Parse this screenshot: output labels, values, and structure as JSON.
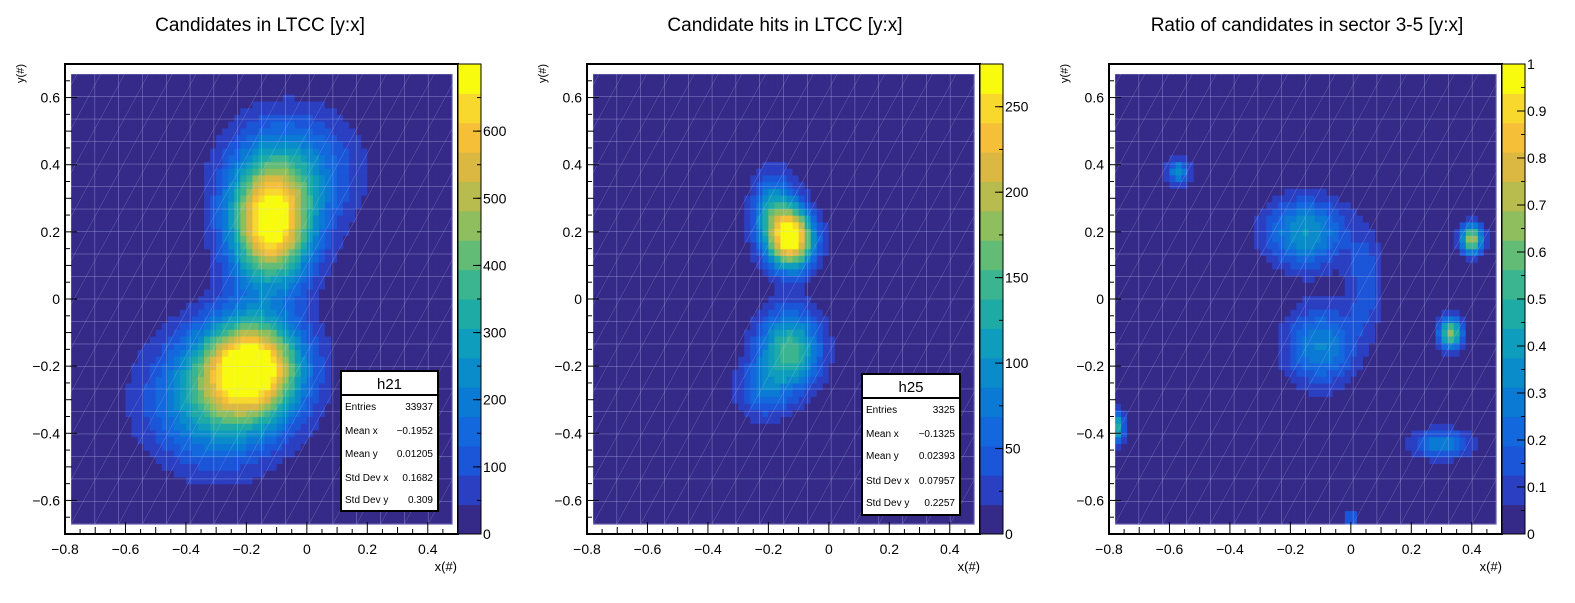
{
  "colors": {
    "palette": [
      "#352a87",
      "#2a3fc2",
      "#1b55d8",
      "#1268dc",
      "#0b7ad5",
      "#0a8ccb",
      "#0e9dbc",
      "#1eaba6",
      "#3bb58f",
      "#62bc75",
      "#8fbe5e",
      "#b8bc4e",
      "#dbb842",
      "#f5c038",
      "#f9d82d",
      "#f9fb0e"
    ],
    "grid": "#c8d3ff",
    "frame": "#000000"
  },
  "panels": [
    {
      "title": "Candidates in LTCC [y:x]",
      "xlabel": "x(#)",
      "ylabel": "y(#)",
      "chart_data": {
        "type": "heatmap",
        "title": "Candidates in LTCC [y:x]",
        "xlabel": "x(#)",
        "ylabel": "y(#)",
        "xlim": [
          -0.8,
          0.5
        ],
        "ylim": [
          -0.7,
          0.7
        ],
        "data_x": [
          -0.78,
          0.48
        ],
        "data_y": [
          -0.67,
          0.67
        ],
        "xticks": [
          -0.8,
          -0.6,
          -0.4,
          -0.2,
          0,
          0.2,
          0.4
        ],
        "xtick_labels": [
          "−0.8",
          "−0.6",
          "−0.4",
          "−0.2",
          "0",
          "0.2",
          "0.4"
        ],
        "yticks": [
          -0.6,
          -0.4,
          -0.2,
          0,
          0.2,
          0.4,
          0.6
        ],
        "ytick_labels": [
          "−0.6",
          "−0.4",
          "−0.2",
          "0",
          "0.2",
          "0.4",
          "0.6"
        ],
        "zlim": [
          0,
          700
        ],
        "zticks": [
          0,
          100,
          200,
          300,
          400,
          500,
          600
        ],
        "ztick_labels": [
          "0",
          "100",
          "200",
          "300",
          "400",
          "500",
          "600"
        ],
        "peaks": [
          {
            "x": -0.12,
            "y": 0.22,
            "sx": 0.09,
            "sy": 0.12,
            "amp": 680
          },
          {
            "x": -0.18,
            "y": -0.2,
            "sx": 0.11,
            "sy": 0.1,
            "amp": 680
          },
          {
            "x": -0.3,
            "y": -0.3,
            "sx": 0.15,
            "sy": 0.13,
            "amp": 300
          },
          {
            "x": -0.05,
            "y": 0.38,
            "sx": 0.14,
            "sy": 0.12,
            "amp": 220
          }
        ],
        "stats": {
          "name": "h21",
          "rows": [
            {
              "label": "Entries",
              "value": "33937"
            },
            {
              "label": "Mean x",
              "value": "−0.1952"
            },
            {
              "label": "Mean y",
              "value": "0.01205"
            },
            {
              "label": "Std Dev x",
              "value": "0.1682"
            },
            {
              "label": "Std Dev y",
              "value": "0.309"
            }
          ]
        }
      }
    },
    {
      "title": "Candidate hits in LTCC [y:x]",
      "xlabel": "x(#)",
      "ylabel": "y(#)",
      "chart_data": {
        "type": "heatmap",
        "title": "Candidate hits in LTCC [y:x]",
        "xlabel": "x(#)",
        "ylabel": "y(#)",
        "xlim": [
          -0.8,
          0.5
        ],
        "ylim": [
          -0.7,
          0.7
        ],
        "data_x": [
          -0.78,
          0.48
        ],
        "data_y": [
          -0.67,
          0.67
        ],
        "xticks": [
          -0.8,
          -0.6,
          -0.4,
          -0.2,
          0,
          0.2,
          0.4
        ],
        "xtick_labels": [
          "−0.8",
          "−0.6",
          "−0.4",
          "−0.2",
          "0",
          "0.2",
          "0.4"
        ],
        "yticks": [
          -0.6,
          -0.4,
          -0.2,
          0,
          0.2,
          0.4,
          0.6
        ],
        "ytick_labels": [
          "−0.6",
          "−0.4",
          "−0.2",
          "0",
          "0.2",
          "0.4",
          "0.6"
        ],
        "zlim": [
          0,
          275
        ],
        "zticks": [
          0,
          50,
          100,
          150,
          200,
          250
        ],
        "ztick_labels": [
          "0",
          "50",
          "100",
          "150",
          "200",
          "250"
        ],
        "peaks": [
          {
            "x": -0.12,
            "y": 0.18,
            "sx": 0.05,
            "sy": 0.06,
            "amp": 260
          },
          {
            "x": -0.18,
            "y": 0.25,
            "sx": 0.05,
            "sy": 0.08,
            "amp": 120
          },
          {
            "x": -0.13,
            "y": -0.15,
            "sx": 0.07,
            "sy": 0.08,
            "amp": 150
          },
          {
            "x": -0.22,
            "y": -0.27,
            "sx": 0.06,
            "sy": 0.06,
            "amp": 60
          }
        ],
        "stats": {
          "name": "h25",
          "rows": [
            {
              "label": "Entries",
              "value": "3325"
            },
            {
              "label": "Mean x",
              "value": "−0.1325"
            },
            {
              "label": "Mean y",
              "value": "0.02393"
            },
            {
              "label": "Std Dev x",
              "value": "0.07957"
            },
            {
              "label": "Std Dev y",
              "value": "0.2257"
            }
          ]
        }
      }
    },
    {
      "title": "Ratio of candidates in sector 3-5 [y:x]",
      "xlabel": "x(#)",
      "ylabel": "y(#)",
      "chart_data": {
        "type": "heatmap",
        "title": "Ratio of candidates in sector 3-5 [y:x]",
        "xlabel": "x(#)",
        "ylabel": "y(#)",
        "xlim": [
          -0.8,
          0.5
        ],
        "ylim": [
          -0.7,
          0.7
        ],
        "data_x": [
          -0.78,
          0.48
        ],
        "data_y": [
          -0.67,
          0.67
        ],
        "xticks": [
          -0.8,
          -0.6,
          -0.4,
          -0.2,
          0,
          0.2,
          0.4
        ],
        "xtick_labels": [
          "−0.8",
          "−0.6",
          "−0.4",
          "−0.2",
          "0",
          "0.2",
          "0.4"
        ],
        "yticks": [
          -0.6,
          -0.4,
          -0.2,
          0,
          0.2,
          0.4,
          0.6
        ],
        "ytick_labels": [
          "−0.6",
          "−0.4",
          "−0.2",
          "0",
          "0.2",
          "0.4",
          "0.6"
        ],
        "zlim": [
          0,
          1
        ],
        "zticks": [
          0,
          0.1,
          0.2,
          0.3,
          0.4,
          0.5,
          0.6,
          0.7,
          0.8,
          0.9,
          1
        ],
        "ztick_labels": [
          "0",
          "0.1",
          "0.2",
          "0.3",
          "0.4",
          "0.5",
          "0.6",
          "0.7",
          "0.8",
          "0.9",
          "1"
        ],
        "peaks": [
          {
            "x": -0.15,
            "y": 0.2,
            "sx": 0.09,
            "sy": 0.07,
            "amp": 0.38
          },
          {
            "x": -0.1,
            "y": -0.14,
            "sx": 0.08,
            "sy": 0.08,
            "amp": 0.32
          },
          {
            "x": 0.4,
            "y": 0.18,
            "sx": 0.025,
            "sy": 0.03,
            "amp": 0.7
          },
          {
            "x": 0.33,
            "y": -0.1,
            "sx": 0.025,
            "sy": 0.03,
            "amp": 0.68
          },
          {
            "x": -0.57,
            "y": 0.38,
            "sx": 0.025,
            "sy": 0.025,
            "amp": 0.35
          },
          {
            "x": 0.3,
            "y": -0.43,
            "sx": 0.07,
            "sy": 0.03,
            "amp": 0.3
          },
          {
            "x": -0.78,
            "y": -0.38,
            "sx": 0.02,
            "sy": 0.03,
            "amp": 0.55
          },
          {
            "x": 0,
            "y": -0.65,
            "sx": 0.02,
            "sy": 0.02,
            "amp": 0.2
          },
          {
            "x": 0.05,
            "y": 0.05,
            "sx": 0.04,
            "sy": 0.1,
            "amp": 0.18
          }
        ],
        "stats": null
      }
    }
  ]
}
